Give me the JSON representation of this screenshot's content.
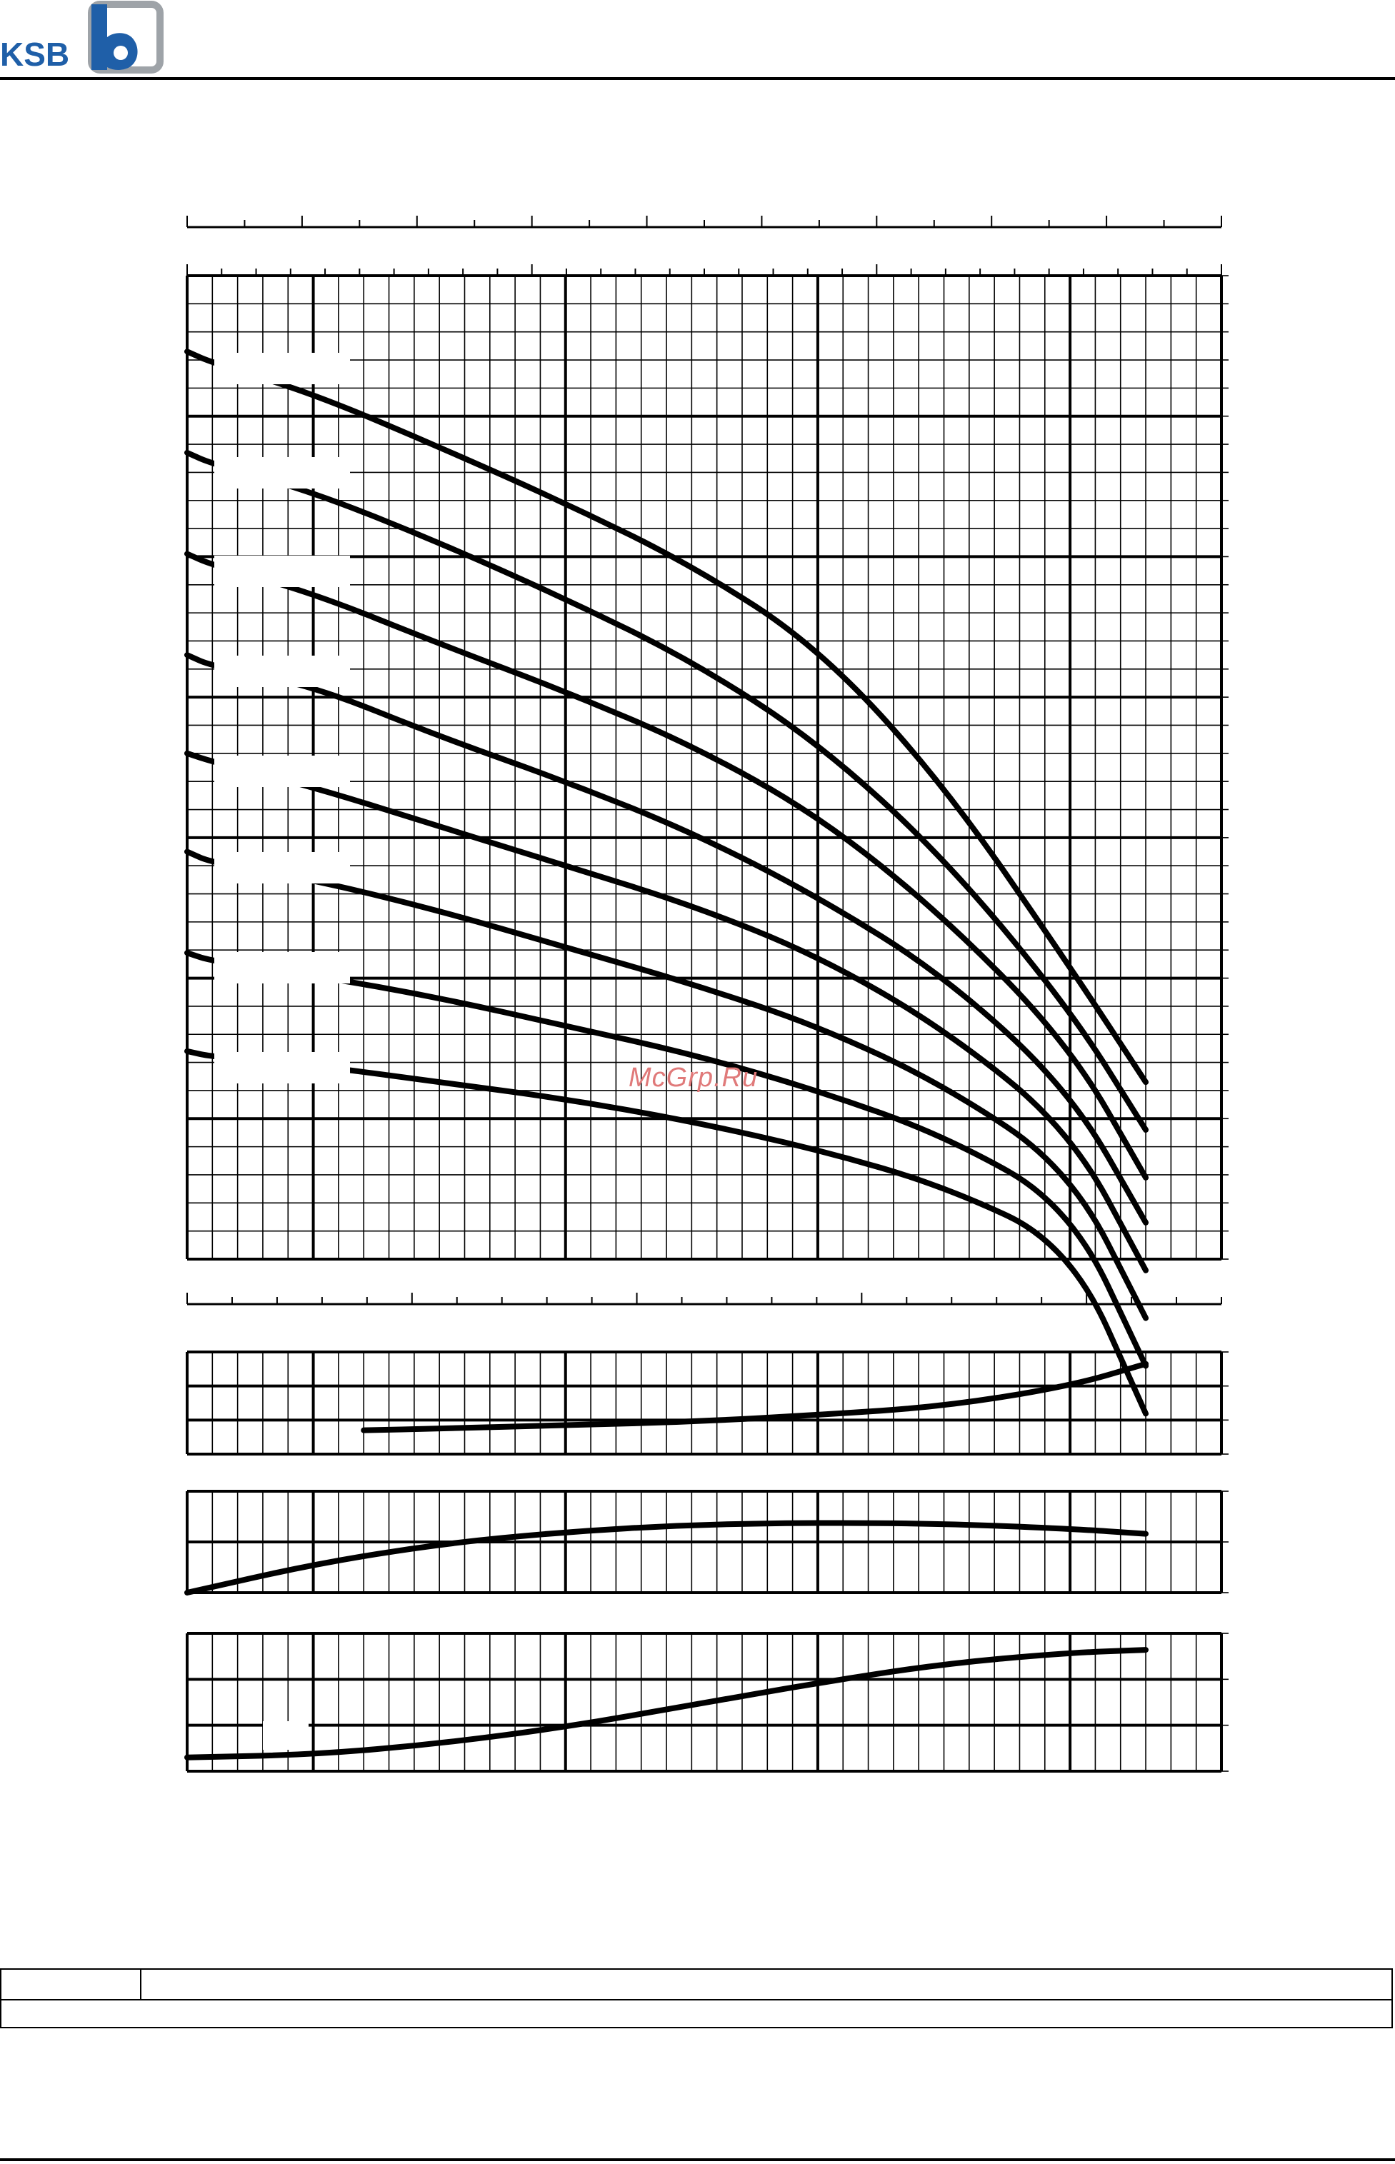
{
  "brand": {
    "logo_text": "KSB",
    "colors": {
      "logo_text": "#1f5fa8",
      "logo_mark": "#1f5fa8",
      "logo_frame": "#9ea3a8"
    }
  },
  "watermark": {
    "text": "McGrp.Ru",
    "color": "#e07a7a"
  },
  "chart_data": [
    {
      "id": "head-curves",
      "type": "line",
      "title": "",
      "xlabel": "",
      "ylabel": "",
      "grid": true,
      "xlim": [
        0,
        41
      ],
      "ylim": [
        0,
        35
      ],
      "series": [
        {
          "x": [
            0,
            1,
            5,
            10,
            15,
            20,
            25,
            30,
            35,
            38
          ],
          "y": [
            32.3,
            31.9,
            30.8,
            28.9,
            26.9,
            24.7,
            21.8,
            16.9,
            10.4,
            6.3
          ]
        },
        {
          "x": [
            0,
            1,
            5,
            10,
            15,
            20,
            25,
            30,
            35,
            38
          ],
          "y": [
            28.7,
            28.3,
            27.3,
            25.5,
            23.5,
            21.3,
            18.4,
            14.3,
            8.9,
            4.6
          ]
        },
        {
          "x": [
            0,
            1,
            5,
            10,
            15,
            20,
            25,
            30,
            35,
            38
          ],
          "y": [
            25.1,
            24.7,
            23.7,
            21.9,
            20.2,
            18.3,
            15.8,
            12.2,
            7.6,
            2.9
          ]
        },
        {
          "x": [
            0,
            1,
            5,
            10,
            15,
            20,
            25,
            30,
            35,
            38
          ],
          "y": [
            21.5,
            21.1,
            20.4,
            18.6,
            17.0,
            15.2,
            12.9,
            10.1,
            6.0,
            1.3
          ]
        },
        {
          "x": [
            0,
            1,
            5,
            10,
            15,
            20,
            25,
            30,
            35,
            38
          ],
          "y": [
            18.0,
            17.7,
            16.8,
            15.4,
            14.0,
            12.6,
            10.8,
            8.2,
            4.6,
            -0.4
          ]
        },
        {
          "x": [
            0,
            1,
            5,
            10,
            15,
            20,
            25,
            30,
            35,
            38
          ],
          "y": [
            14.5,
            14.1,
            13.5,
            12.4,
            11.1,
            9.8,
            8.3,
            6.2,
            3.2,
            -2.1
          ]
        },
        {
          "x": [
            0,
            1,
            5,
            10,
            15,
            20,
            25,
            30,
            35,
            38
          ],
          "y": [
            10.9,
            10.6,
            10.1,
            9.3,
            8.3,
            7.3,
            6.0,
            4.4,
            1.9,
            -3.8
          ]
        },
        {
          "x": [
            0,
            1,
            5,
            10,
            15,
            20,
            25,
            30,
            35,
            38
          ],
          "y": [
            7.4,
            7.2,
            6.9,
            6.3,
            5.7,
            4.9,
            3.9,
            2.6,
            0.5,
            -5.5
          ]
        }
      ]
    },
    {
      "id": "npsh-curve",
      "type": "line",
      "title": "",
      "xlabel": "",
      "ylabel": "",
      "grid": true,
      "xlim": [
        0,
        41
      ],
      "ylim": [
        0,
        3
      ],
      "series": [
        {
          "x": [
            7,
            10,
            15,
            20,
            25,
            30,
            35,
            38
          ],
          "y": [
            0.7,
            0.75,
            0.85,
            0.95,
            1.15,
            1.4,
            2.0,
            2.65
          ]
        }
      ]
    },
    {
      "id": "efficiency-curve",
      "type": "line",
      "title": "",
      "xlabel": "",
      "ylabel": "",
      "grid": true,
      "xlim": [
        0,
        41
      ],
      "ylim": [
        0,
        100
      ],
      "series": [
        {
          "x": [
            0,
            5,
            10,
            15,
            20,
            25,
            30,
            35,
            38
          ],
          "y": [
            0,
            28,
            48,
            60,
            67,
            69,
            68,
            63,
            58
          ]
        }
      ]
    },
    {
      "id": "power-curve",
      "type": "line",
      "title": "",
      "xlabel": "",
      "ylabel": "",
      "grid": true,
      "xlim": [
        0,
        41
      ],
      "ylim": [
        0,
        1
      ],
      "series": [
        {
          "x": [
            0,
            5,
            10,
            15,
            20,
            25,
            30,
            35,
            38
          ],
          "y": [
            0.1,
            0.12,
            0.2,
            0.32,
            0.48,
            0.64,
            0.78,
            0.86,
            0.88
          ]
        }
      ]
    }
  ],
  "info_table": {
    "rows": [
      [
        "",
        ""
      ],
      [
        ""
      ]
    ]
  }
}
